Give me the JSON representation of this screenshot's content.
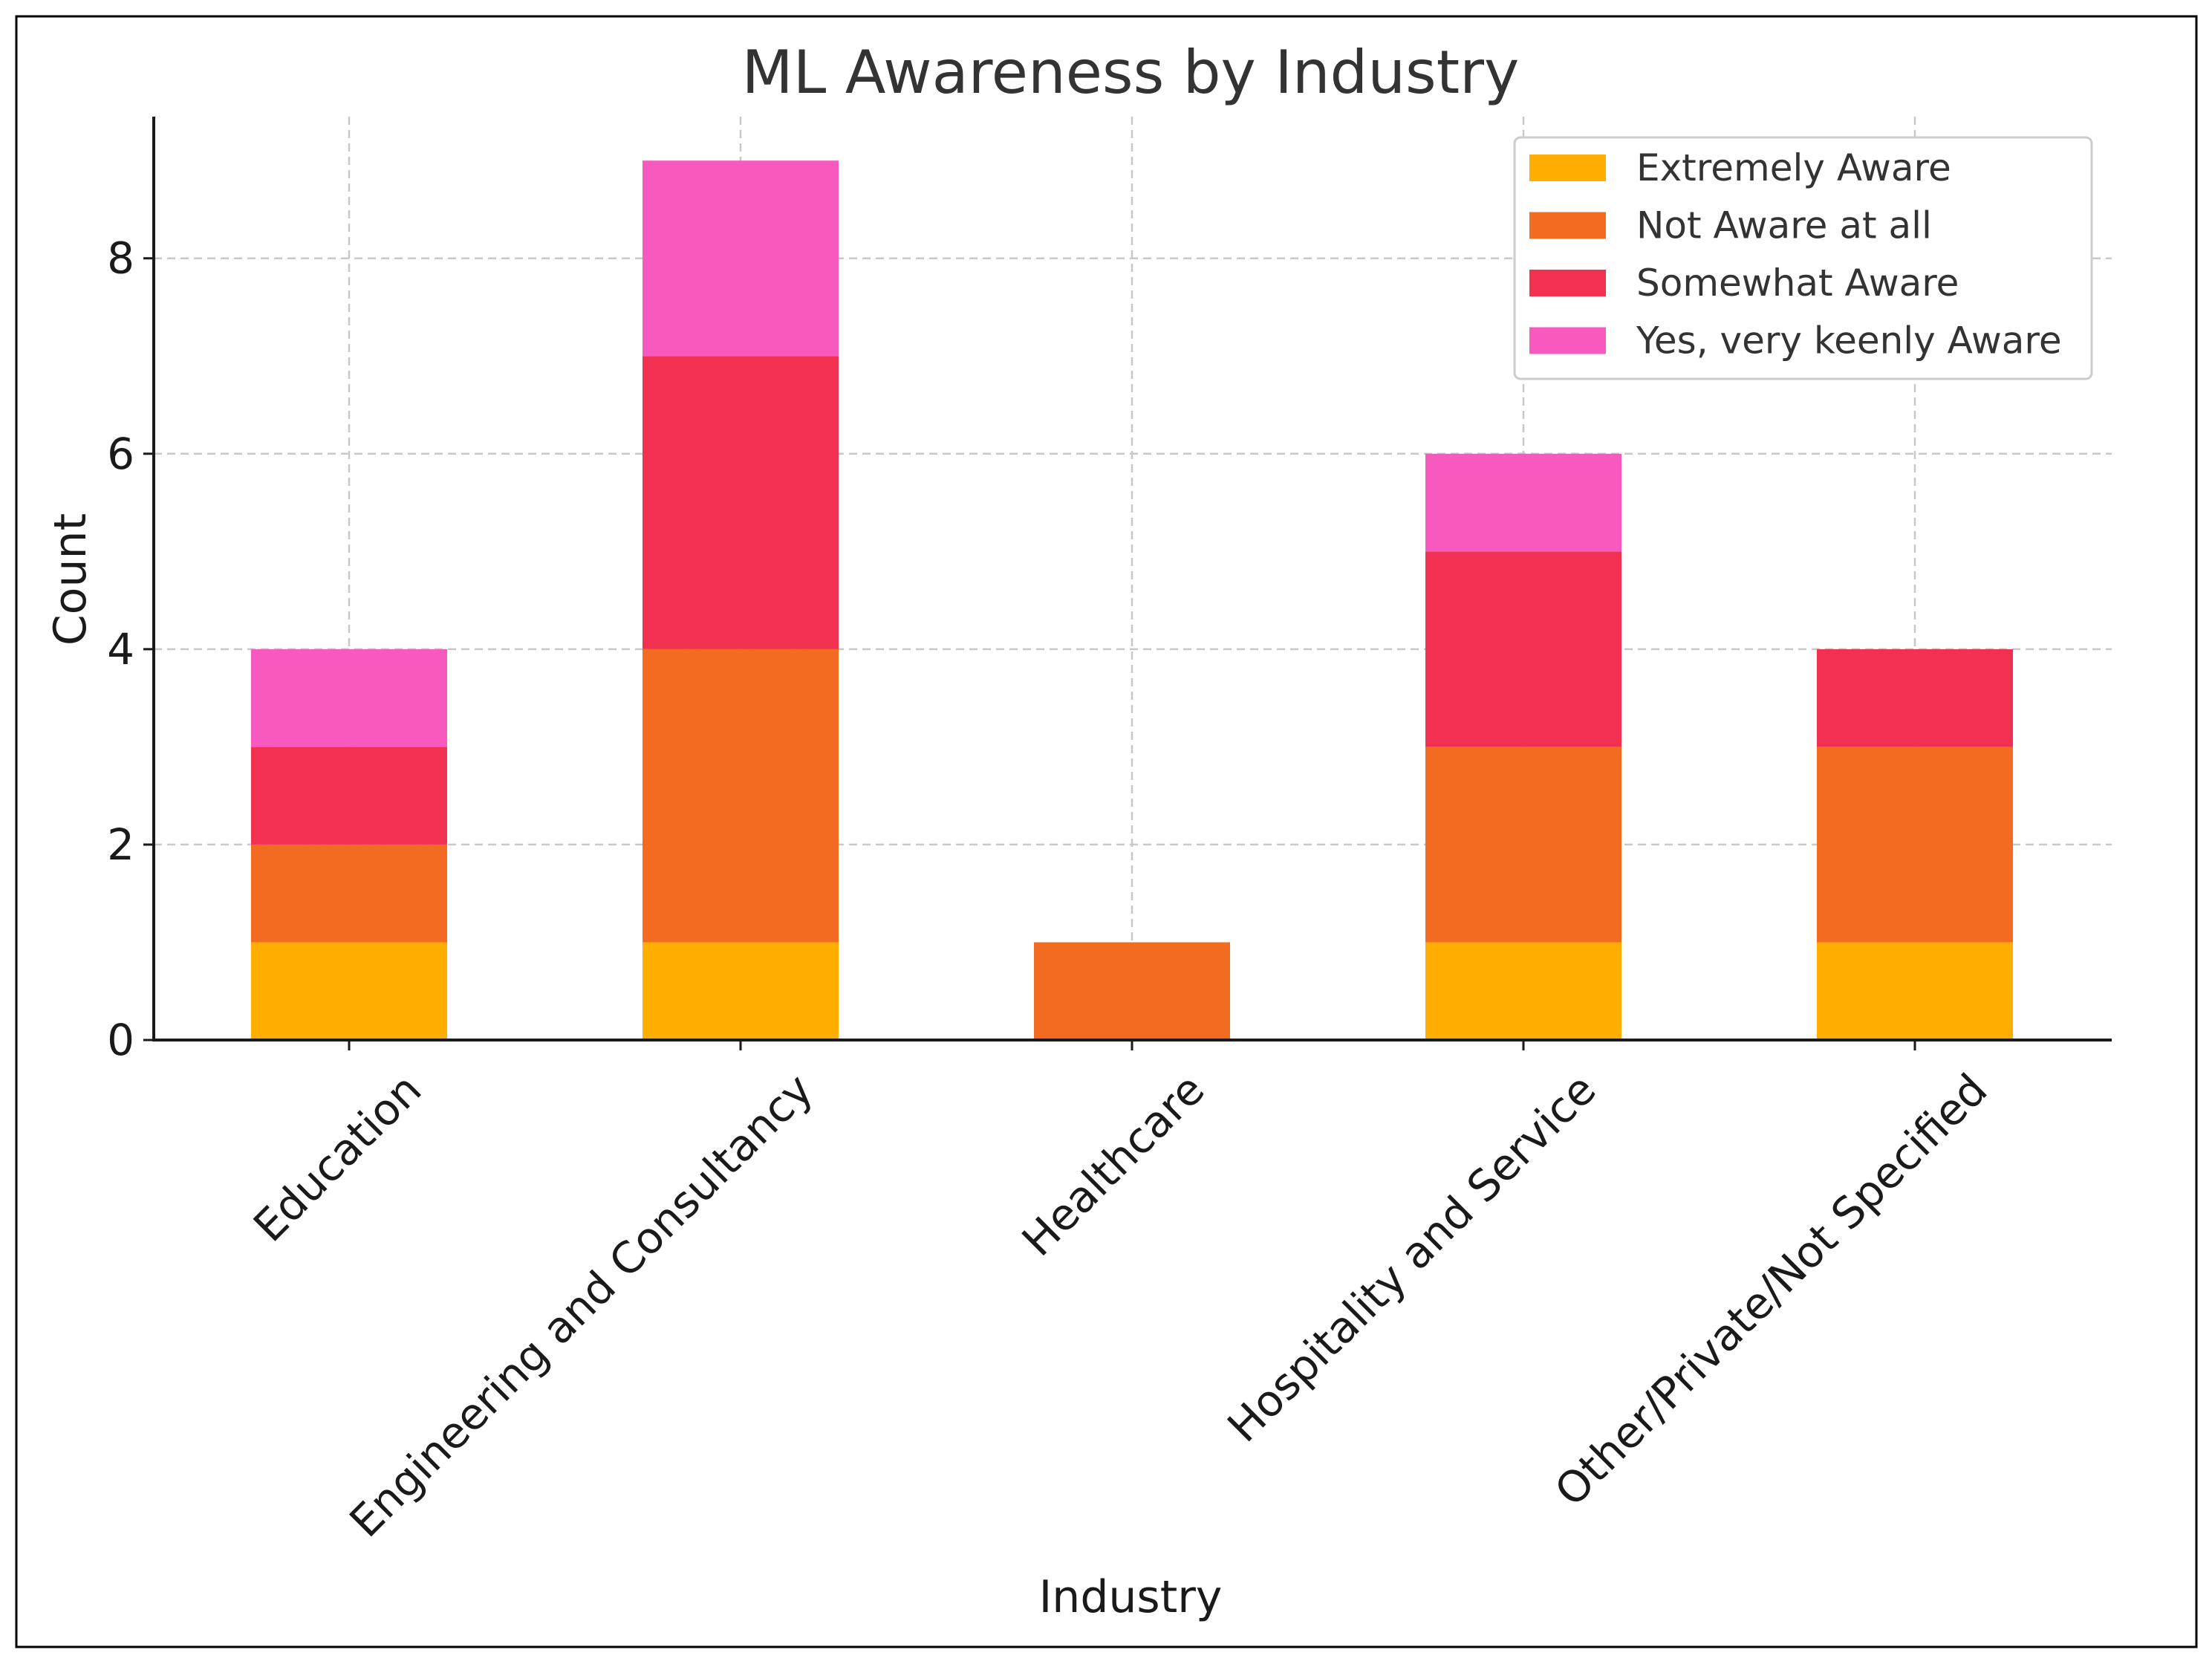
{
  "chart_data": {
    "type": "bar",
    "stacked": true,
    "title": "ML Awareness by Industry",
    "xlabel": "Industry",
    "ylabel": "Count",
    "ylim": [
      0,
      9.45
    ],
    "yticks": [
      0,
      2,
      4,
      6,
      8
    ],
    "grid": true,
    "legend_position": "top-right",
    "categories": [
      "Education",
      "Engineering and Consultancy",
      "Healthcare",
      "Hospitality and Service",
      "Other/Private/Not Specified"
    ],
    "series": [
      {
        "name": "Extremely Aware",
        "color": "#ffae00",
        "values": [
          1,
          1,
          0,
          1,
          1
        ]
      },
      {
        "name": "Not Aware at all",
        "color": "#f26b21",
        "values": [
          1,
          3,
          1,
          2,
          2
        ]
      },
      {
        "name": "Somewhat Aware",
        "color": "#f23152",
        "values": [
          1,
          3,
          0,
          2,
          1
        ]
      },
      {
        "name": "Yes, very keenly Aware",
        "color": "#f759bf",
        "values": [
          1,
          2,
          0,
          1,
          0
        ]
      }
    ]
  }
}
